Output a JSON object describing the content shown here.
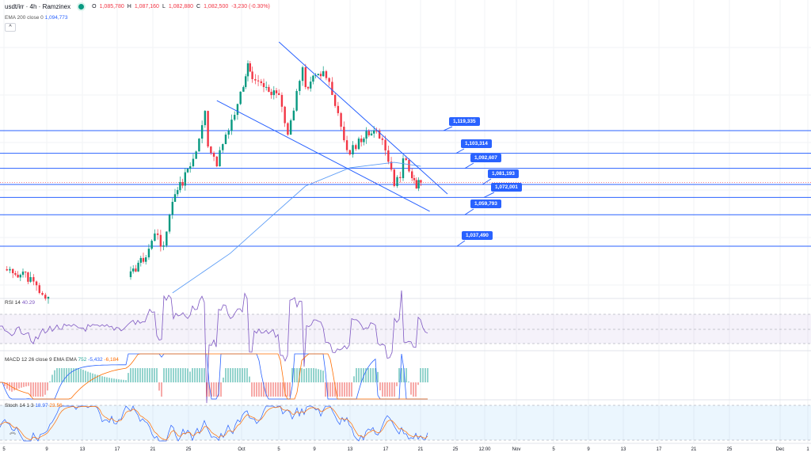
{
  "header": {
    "symbol": "usdt/irr · 4h · Ramzinex",
    "o_label": "O",
    "o": "1,085,780",
    "h_label": "H",
    "h": "1,087,160",
    "l_label": "L",
    "l": "1,082,880",
    "c_label": "C",
    "c": "1,082,500",
    "change": "-3,230 (-0.30%)",
    "ema_label": "EMA 200 close 0",
    "ema_value": "1,094,773",
    "collapse": "^"
  },
  "colors": {
    "up": "#089981",
    "down": "#f23645",
    "lines": "#2962ff",
    "ema": "#5b9cf6",
    "rsi": "#7e57c2",
    "macd": "#2962ff",
    "signal": "#ff6d00"
  },
  "chart_data": {
    "type": "candlestick",
    "closes": [
      [
        "Sep 5",
        1021200
      ],
      [
        "Sep 6",
        1018400
      ],
      [
        "Sep 8",
        1015600
      ],
      [
        "Sep 9",
        1004400
      ],
      [
        "Sep 10",
        1001600
      ],
      [
        "Sep 19",
        1015600
      ],
      [
        "Sep 21",
        1029600
      ],
      [
        "Sep 22",
        1046500
      ],
      [
        "Sep 23",
        1038000
      ],
      [
        "Sep 24",
        1068900
      ],
      [
        "Sep 26",
        1094100
      ],
      [
        "Sep 27",
        1113700
      ],
      [
        "Sep 27 16:00",
        1133300
      ],
      [
        "Sep 28",
        1108100
      ],
      [
        "Sep 29",
        1094100
      ],
      [
        "Sep 30",
        1116500
      ],
      [
        "Oct 1",
        1130500
      ],
      [
        "Oct 2",
        1150200
      ],
      [
        "Oct 2 12:00",
        1167000
      ],
      [
        "Oct 3",
        1155800
      ],
      [
        "Oct 4",
        1153000
      ],
      [
        "Oct 6",
        1144600
      ],
      [
        "Oct 7",
        1116500
      ],
      [
        "Oct 8",
        1147400
      ],
      [
        "Oct 8 16:00",
        1164200
      ],
      [
        "Oct 9",
        1150200
      ],
      [
        "Oct 11",
        1161400
      ],
      [
        "Oct 12",
        1144600
      ],
      [
        "Oct 13",
        1122100
      ],
      [
        "Oct 14",
        1102500
      ],
      [
        "Oct 15",
        1113700
      ],
      [
        "Oct 17",
        1119300
      ],
      [
        "Oct 18",
        1105300
      ],
      [
        "Oct 19",
        1080100
      ],
      [
        "Oct 19 16:00",
        1085700
      ],
      [
        "Oct 20",
        1099700
      ],
      [
        "Oct 21",
        1085700
      ],
      [
        "Oct 21 12:00",
        1078400
      ],
      [
        "Oct 22",
        1082500
      ]
    ],
    "ema200": [
      [
        "Sep 24",
        1004400
      ],
      [
        "Sep 30 12:00",
        1032400
      ],
      [
        "Oct 5",
        1057700
      ],
      [
        "Oct 9",
        1080100
      ],
      [
        "Oct 14",
        1093000
      ],
      [
        "Oct 19",
        1096900
      ],
      [
        "Oct 22",
        1094100
      ]
    ],
    "trendlines": [
      {
        "from": [
          "Oct 6",
          1182100
        ],
        "to": [
          "Oct 25",
          1074500
        ]
      },
      {
        "from": [
          "Sep 29",
          1140600
        ],
        "to": [
          "Oct 23",
          1062200
        ]
      }
    ],
    "levels": [
      "1,119,335",
      "1,103,314",
      "1,092,607",
      "1,081,193",
      "1,072,001",
      "1,059,793",
      "1,037,490"
    ],
    "x_ticks": [
      "5",
      "9",
      "13",
      "17",
      "21",
      "25",
      "Oct",
      "5",
      "9",
      "13",
      "17",
      "21",
      "25",
      "12:00",
      "Nov",
      "5",
      "9",
      "13",
      "17",
      "21",
      "25",
      "Dec",
      "1"
    ]
  },
  "indicators": {
    "rsi": {
      "label": "RSI 14",
      "value": "40.29"
    },
    "macd": {
      "label": "MACD 12 26 close 9 EMA EMA",
      "hist": "752",
      "macd": "-5,432",
      "signal": "-6,184"
    },
    "stoch": {
      "label": "Stoch 14 1 3",
      "k": "18.97",
      "d": "23.56"
    }
  }
}
